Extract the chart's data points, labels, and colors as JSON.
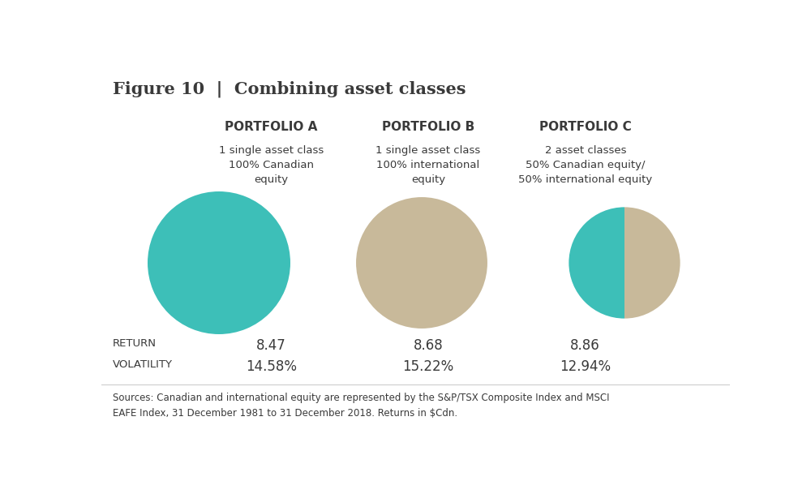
{
  "title": "Figure 10  |  Combining asset classes",
  "title_fontsize": 15,
  "background_color": "#ffffff",
  "portfolios": [
    {
      "name": "PORTFOLIO A",
      "subtitle": "1 single asset class\n100% Canadian\nequity",
      "slices": [
        100,
        0
      ],
      "colors": [
        "#3dbfb8",
        "#c8b99a"
      ],
      "return": "8.47",
      "volatility": "14.58%"
    },
    {
      "name": "PORTFOLIO B",
      "subtitle": "1 single asset class\n100% international\nequity",
      "slices": [
        0,
        100
      ],
      "colors": [
        "#3dbfb8",
        "#c8b99a"
      ],
      "return": "8.68",
      "volatility": "15.22%"
    },
    {
      "name": "PORTFOLIO C",
      "subtitle": "2 asset classes\n50% Canadian equity/\n50% international equity",
      "slices": [
        50,
        50
      ],
      "colors": [
        "#3dbfb8",
        "#c8b99a"
      ],
      "return": "8.86",
      "volatility": "12.94%"
    }
  ],
  "teal_color": "#3dbfb8",
  "tan_color": "#c8b99a",
  "label_color": "#3a3a3a",
  "row_label_color": "#3a3a3a",
  "source_text": "Sources: Canadian and international equity are represented by the S&P/TSX Composite Index and MSCI\nEAFE Index, 31 December 1981 to 31 December 2018. Returns in $Cdn.",
  "portfolio_name_fontsize": 11,
  "subtitle_fontsize": 9.5,
  "stats_label_fontsize": 9.5,
  "stats_value_fontsize": 12,
  "source_fontsize": 8.5,
  "return_label": "RETURN",
  "volatility_label": "VOLATILITY"
}
